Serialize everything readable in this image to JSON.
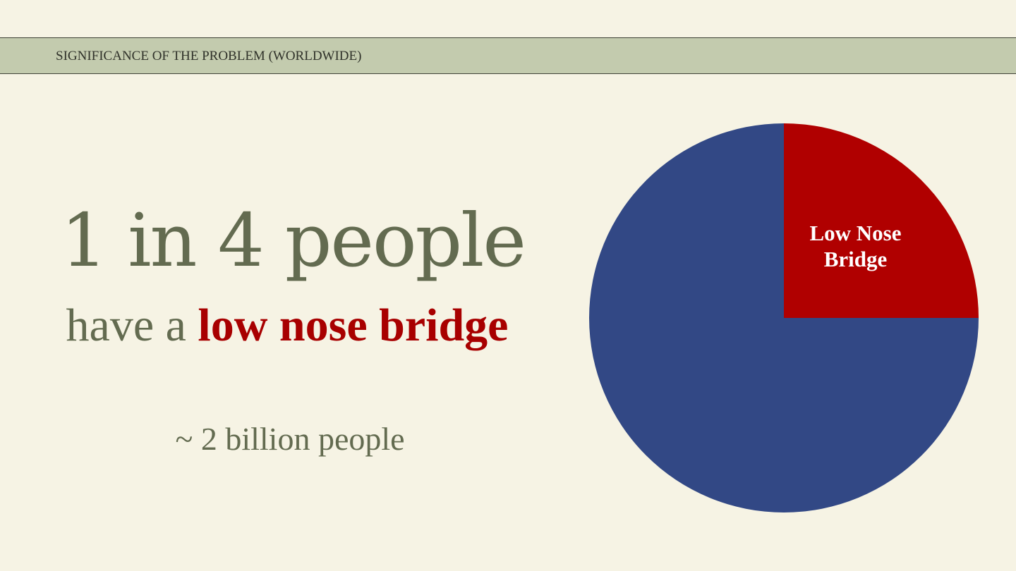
{
  "header": {
    "title": "SIGNIFICANCE OF THE PROBLEM (WORLDWIDE)"
  },
  "stat": {
    "headline": "1 in 4 people",
    "line_prefix": "have a ",
    "line_highlight": "low nose bridge",
    "note": "~ 2 billion people"
  },
  "colors": {
    "background": "#f6f3e4",
    "header_band": "#c3cbae",
    "text_olive": "#636b50",
    "accent_red": "#a80000",
    "pie_blue": "#324885"
  },
  "chart_data": {
    "type": "pie",
    "title": "",
    "slices": [
      {
        "label": "Low Nose Bridge",
        "label_lines": [
          "Low Nose",
          "Bridge"
        ],
        "value": 25,
        "color": "#b00000"
      },
      {
        "label": "",
        "label_lines": [],
        "value": 75,
        "color": "#324885"
      }
    ],
    "start_angle_deg": 0,
    "direction": "clockwise"
  }
}
